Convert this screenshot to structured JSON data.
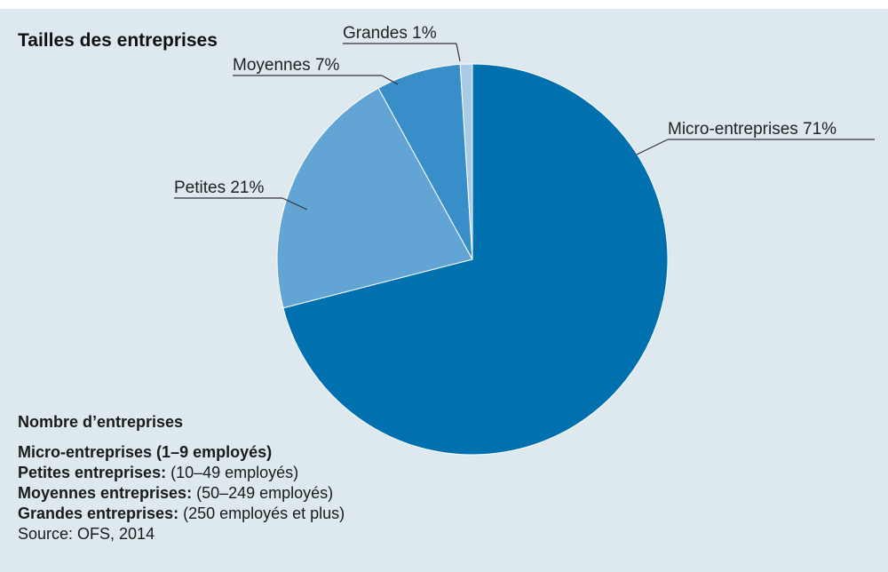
{
  "chart_data": {
    "type": "pie",
    "title": "Tailles des entreprises",
    "slices": [
      {
        "label": "Micro-entreprises 71%",
        "value": 71,
        "color": "#0071ae"
      },
      {
        "label": "Petites 21%",
        "value": 21,
        "color": "#62a4d4"
      },
      {
        "label": "Moyennes 7%",
        "value": 7,
        "color": "#388ec8"
      },
      {
        "label": "Grandes 1%",
        "value": 1,
        "color": "#a8cbe6"
      }
    ],
    "colors": {
      "background": "#dde9ee",
      "slice_border": "#ffffff"
    }
  },
  "legend": {
    "heading": "Nombre d’entreprises",
    "definitions": [
      {
        "term": "Micro-entreprises (1–9 employés)",
        "desc": ""
      },
      {
        "term": "Petites entreprises:",
        "desc": " (10–49 employés)"
      },
      {
        "term": "Moyennes entreprises:",
        "desc": " (50–249 employés)"
      },
      {
        "term": "Grandes entreprises:",
        "desc": " (250 employés et plus)"
      }
    ],
    "source": "Source: OFS, 2014"
  }
}
